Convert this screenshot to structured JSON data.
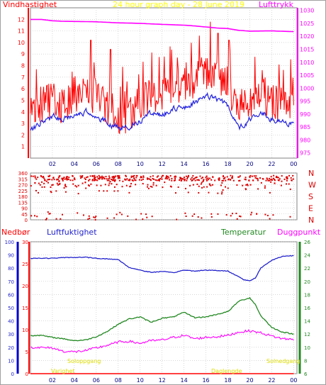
{
  "title": "24 hour graph day - 28 June 2019",
  "colors": {
    "wind": "#ff0000",
    "gust": "#ff0000",
    "wind_avg": "#2222dd",
    "pressure": "#ff00ff",
    "direction": "#dd0000",
    "rain": "#ff0000",
    "humidity": "#2222cc",
    "temperature": "#228822",
    "dewpoint": "#ff00ff",
    "sun": "#ffff00",
    "grid": "#c0c0c0",
    "frame": "#808080"
  },
  "chart_data": [
    {
      "type": "line",
      "name": "wind-pressure",
      "xticks": [
        "02",
        "04",
        "06",
        "08",
        "10",
        "12",
        "14",
        "16",
        "18",
        "20",
        "22",
        "00"
      ],
      "left_axis": {
        "label": "Vindhastighet",
        "ticks": [
          "1",
          "2",
          "3",
          "4",
          "5",
          "6",
          "7",
          "8",
          "9",
          "10",
          "11",
          "12"
        ],
        "range": [
          0,
          13
        ]
      },
      "right_axis": {
        "label": "Lufttrykk",
        "ticks": [
          "975",
          "980",
          "985",
          "990",
          "995",
          "1000",
          "1005",
          "1010",
          "1015",
          "1020",
          "1025",
          "1030"
        ],
        "range": [
          973,
          1031
        ]
      },
      "x_range_hours": [
        0,
        24.3
      ],
      "series": [
        {
          "role": "gust",
          "keypoints": [
            [
              0,
              3.8
            ],
            [
              1,
              4.5
            ],
            [
              2,
              5.2
            ],
            [
              3,
              4.5
            ],
            [
              4,
              5.5
            ],
            [
              5,
              5.8
            ],
            [
              6,
              5.2
            ],
            [
              7,
              4.5
            ],
            [
              8,
              3.6
            ],
            [
              9,
              3.8
            ],
            [
              10,
              4.8
            ],
            [
              11,
              5.6
            ],
            [
              12,
              5.5
            ],
            [
              13,
              6.2
            ],
            [
              14,
              6.2
            ],
            [
              15,
              6.8
            ],
            [
              16,
              7.6
            ],
            [
              17,
              7.2
            ],
            [
              18,
              6.4
            ],
            [
              19,
              4.2
            ],
            [
              20,
              5.0
            ],
            [
              21,
              5.6
            ],
            [
              22,
              4.8
            ],
            [
              23,
              4.5
            ],
            [
              24,
              4.2
            ]
          ]
        },
        {
          "role": "wind_avg",
          "keypoints": [
            [
              0,
              2.4
            ],
            [
              1,
              3.2
            ],
            [
              2,
              3.6
            ],
            [
              3,
              3.3
            ],
            [
              4,
              3.8
            ],
            [
              5,
              4.1
            ],
            [
              6,
              3.6
            ],
            [
              7,
              3.1
            ],
            [
              8,
              2.6
            ],
            [
              9,
              2.8
            ],
            [
              10,
              3.3
            ],
            [
              11,
              3.9
            ],
            [
              12,
              3.8
            ],
            [
              13,
              4.4
            ],
            [
              14,
              4.4
            ],
            [
              15,
              4.8
            ],
            [
              16,
              5.5
            ],
            [
              17,
              5.1
            ],
            [
              18,
              4.5
            ],
            [
              19,
              2.6
            ],
            [
              20,
              3.4
            ],
            [
              21,
              4.0
            ],
            [
              22,
              3.3
            ],
            [
              23,
              3.1
            ],
            [
              24,
              3.0
            ]
          ]
        },
        {
          "role": "pressure",
          "keypoints": [
            [
              0,
              1026.5
            ],
            [
              1,
              1026.5
            ],
            [
              2,
              1026.0
            ],
            [
              3,
              1025.8
            ],
            [
              6,
              1025.6
            ],
            [
              8,
              1025.2
            ],
            [
              10,
              1025.0
            ],
            [
              12,
              1024.6
            ],
            [
              14,
              1024.3
            ],
            [
              15,
              1024.0
            ],
            [
              17,
              1023.2
            ],
            [
              18,
              1023.0
            ],
            [
              19,
              1022.3
            ],
            [
              20,
              1022.0
            ],
            [
              22,
              1022.1
            ],
            [
              24,
              1021.8
            ]
          ]
        }
      ],
      "peaks": [
        [
          5.5,
          10.2
        ],
        [
          7.3,
          9.4
        ],
        [
          8.4,
          7.9
        ],
        [
          16.4,
          11.8
        ],
        [
          17.1,
          10.8
        ],
        [
          18.1,
          10.2
        ],
        [
          13.4,
          8.7
        ]
      ]
    },
    {
      "type": "scatter",
      "name": "wind-direction",
      "xticks": [
        "02",
        "04",
        "06",
        "08",
        "10",
        "12",
        "14",
        "16",
        "18",
        "20",
        "22",
        "00"
      ],
      "left_axis": {
        "ticks": [
          "0",
          "45",
          "90",
          "135",
          "180",
          "225",
          "270",
          "315",
          "360"
        ],
        "range": [
          0,
          360
        ]
      },
      "right_axis": {
        "ticks": [
          "N",
          "W",
          "S",
          "E",
          "N"
        ]
      },
      "dominant_degrees": 315
    },
    {
      "type": "line",
      "name": "rain-humidity-temperature",
      "xticks": [
        "02",
        "04",
        "06",
        "08",
        "10",
        "12",
        "14",
        "16",
        "18",
        "20",
        "22",
        "00"
      ],
      "labels": {
        "rain": "Nedbør",
        "humidity": "Luftfuktighet",
        "temperature": "Temperatur",
        "dewpoint": "Duggpunkt"
      },
      "rain_axis": {
        "ticks": [
          "0",
          "5",
          "10",
          "15",
          "20",
          "25",
          "30"
        ],
        "range": [
          0,
          30
        ]
      },
      "humidity_axis": {
        "ticks": [
          "0",
          "10",
          "20",
          "30",
          "40",
          "50",
          "60",
          "70",
          "80",
          "90",
          "100"
        ],
        "range": [
          0,
          100
        ]
      },
      "temp_axis": {
        "ticks": [
          "6",
          "8",
          "10",
          "12",
          "14",
          "16",
          "18",
          "20",
          "22",
          "24",
          "26"
        ],
        "range": [
          6,
          26
        ]
      },
      "sun_labels": {
        "sunrise_left": "Soloppgang",
        "sunset_right": "Solnedgang",
        "bottom_left": "Varighet",
        "bottom_right": "Daglengde"
      },
      "series": [
        {
          "role": "humidity",
          "keypoints": [
            [
              0,
              87.5
            ],
            [
              2,
              87.5
            ],
            [
              3,
              88.0
            ],
            [
              5,
              88.3
            ],
            [
              6,
              87.5
            ],
            [
              8,
              86.5
            ],
            [
              9,
              80.5
            ],
            [
              10,
              78.5
            ],
            [
              11,
              76.8
            ],
            [
              12,
              77.5
            ],
            [
              13,
              76.5
            ],
            [
              14,
              78.5
            ],
            [
              15,
              77.8
            ],
            [
              16,
              78.5
            ],
            [
              17,
              78.2
            ],
            [
              18,
              77.8
            ],
            [
              19,
              73.5
            ],
            [
              19.5,
              71.0
            ],
            [
              20,
              70.5
            ],
            [
              20.5,
              72.5
            ],
            [
              21,
              80.0
            ],
            [
              22,
              86.0
            ],
            [
              23,
              89.0
            ],
            [
              24,
              89.5
            ]
          ]
        },
        {
          "role": "temperature",
          "keypoints": [
            [
              0,
              11.8
            ],
            [
              1,
              11.8
            ],
            [
              2,
              11.5
            ],
            [
              3,
              11.3
            ],
            [
              4,
              11.0
            ],
            [
              5,
              11.1
            ],
            [
              6,
              11.6
            ],
            [
              7,
              12.4
            ],
            [
              8,
              13.5
            ],
            [
              9,
              14.3
            ],
            [
              10,
              14.6
            ],
            [
              11,
              13.8
            ],
            [
              12,
              14.4
            ],
            [
              13,
              14.6
            ],
            [
              14,
              15.3
            ],
            [
              15,
              14.5
            ],
            [
              16,
              14.6
            ],
            [
              17,
              15.0
            ],
            [
              18,
              15.4
            ],
            [
              19,
              17.0
            ],
            [
              20,
              17.5
            ],
            [
              20.5,
              16.5
            ],
            [
              21,
              14.8
            ],
            [
              22,
              13.0
            ],
            [
              23,
              12.3
            ],
            [
              24,
              12.0
            ]
          ]
        },
        {
          "role": "dewpoint",
          "keypoints": [
            [
              0,
              10.0
            ],
            [
              2,
              9.9
            ],
            [
              3,
              9.4
            ],
            [
              4,
              9.3
            ],
            [
              5,
              9.5
            ],
            [
              6,
              9.9
            ],
            [
              7,
              10.3
            ],
            [
              8,
              10.8
            ],
            [
              9,
              10.9
            ],
            [
              10,
              10.6
            ],
            [
              11,
              11.0
            ],
            [
              12,
              11.1
            ],
            [
              13,
              11.5
            ],
            [
              14,
              11.8
            ],
            [
              15,
              11.3
            ],
            [
              16,
              11.5
            ],
            [
              17,
              11.6
            ],
            [
              18,
              11.8
            ],
            [
              19,
              12.3
            ],
            [
              20,
              12.5
            ],
            [
              21,
              12.2
            ],
            [
              22,
              11.7
            ],
            [
              23,
              11.3
            ],
            [
              24,
              11.2
            ]
          ]
        },
        {
          "role": "rain",
          "keypoints": [
            [
              0,
              0
            ],
            [
              24,
              0
            ]
          ]
        }
      ]
    }
  ]
}
